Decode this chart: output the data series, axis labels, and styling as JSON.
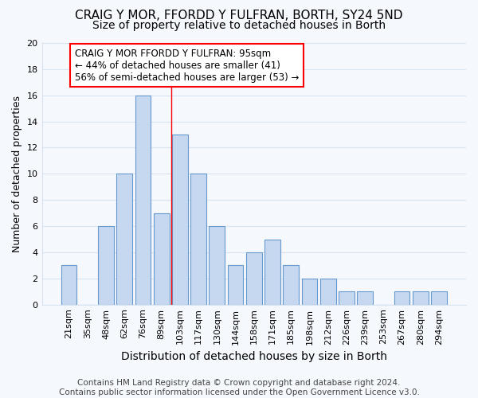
{
  "title1": "CRAIG Y MOR, FFORDD Y FULFRAN, BORTH, SY24 5ND",
  "title2": "Size of property relative to detached houses in Borth",
  "xlabel": "Distribution of detached houses by size in Borth",
  "ylabel": "Number of detached properties",
  "categories": [
    "21sqm",
    "35sqm",
    "48sqm",
    "62sqm",
    "76sqm",
    "89sqm",
    "103sqm",
    "117sqm",
    "130sqm",
    "144sqm",
    "158sqm",
    "171sqm",
    "185sqm",
    "198sqm",
    "212sqm",
    "226sqm",
    "239sqm",
    "253sqm",
    "267sqm",
    "280sqm",
    "294sqm"
  ],
  "values": [
    3,
    0,
    6,
    10,
    16,
    7,
    13,
    10,
    6,
    3,
    4,
    5,
    3,
    2,
    2,
    1,
    1,
    0,
    1,
    1,
    1
  ],
  "bar_color": "#c5d8f0",
  "bar_edgecolor": "#6699cc",
  "background_color": "#f5f8fd",
  "grid_color": "#d8e4f0",
  "red_line_x": 5.55,
  "annotation_text": "CRAIG Y MOR FFORDD Y FULFRAN: 95sqm\n← 44% of detached houses are smaller (41)\n56% of semi-detached houses are larger (53) →",
  "annotation_box_edgecolor": "red",
  "ylim": [
    0,
    20
  ],
  "yticks": [
    0,
    2,
    4,
    6,
    8,
    10,
    12,
    14,
    16,
    18,
    20
  ],
  "footnote": "Contains HM Land Registry data © Crown copyright and database right 2024.\nContains public sector information licensed under the Open Government Licence v3.0.",
  "title1_fontsize": 11,
  "title2_fontsize": 10,
  "xlabel_fontsize": 10,
  "ylabel_fontsize": 9,
  "tick_fontsize": 8,
  "annotation_fontsize": 8.5,
  "footnote_fontsize": 7.5
}
